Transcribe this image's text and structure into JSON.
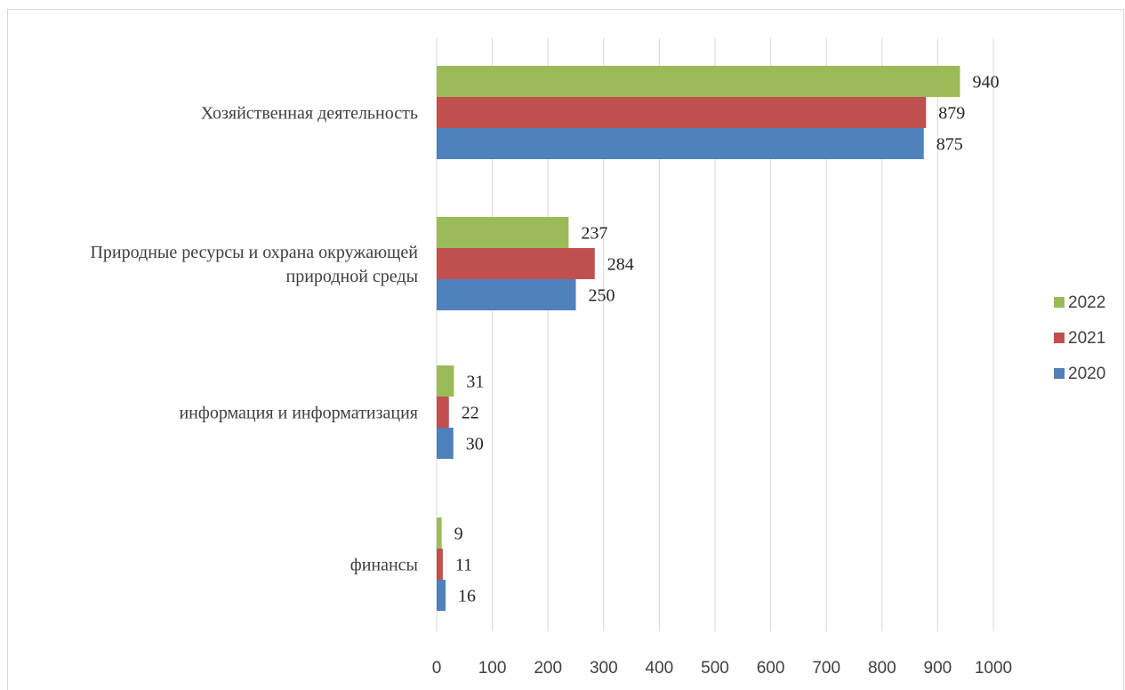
{
  "chart_data": {
    "type": "bar",
    "orientation": "horizontal",
    "categories": [
      "Хозяйственная деятельность",
      "Природные ресурсы и охрана окружающей природной среды",
      "информация и информатизация",
      "финансы"
    ],
    "category_lines": [
      [
        "Хозяйственная деятельность"
      ],
      [
        "Природные ресурсы и охрана окружающей",
        "природной среды"
      ],
      [
        "информация и информатизация"
      ],
      [
        "финансы"
      ]
    ],
    "series": [
      {
        "name": "2022",
        "color": "#9bbb59",
        "values": [
          940,
          237,
          31,
          9
        ]
      },
      {
        "name": "2021",
        "color": "#c0504d",
        "values": [
          879,
          284,
          22,
          11
        ]
      },
      {
        "name": "2020",
        "color": "#4f81bd",
        "values": [
          875,
          250,
          30,
          16
        ]
      }
    ],
    "xlim": [
      0,
      1000
    ],
    "xticks": [
      0,
      100,
      200,
      300,
      400,
      500,
      600,
      700,
      800,
      900,
      1000
    ],
    "grid": true,
    "legend_position": "right",
    "title": "",
    "xlabel": "",
    "ylabel": ""
  }
}
